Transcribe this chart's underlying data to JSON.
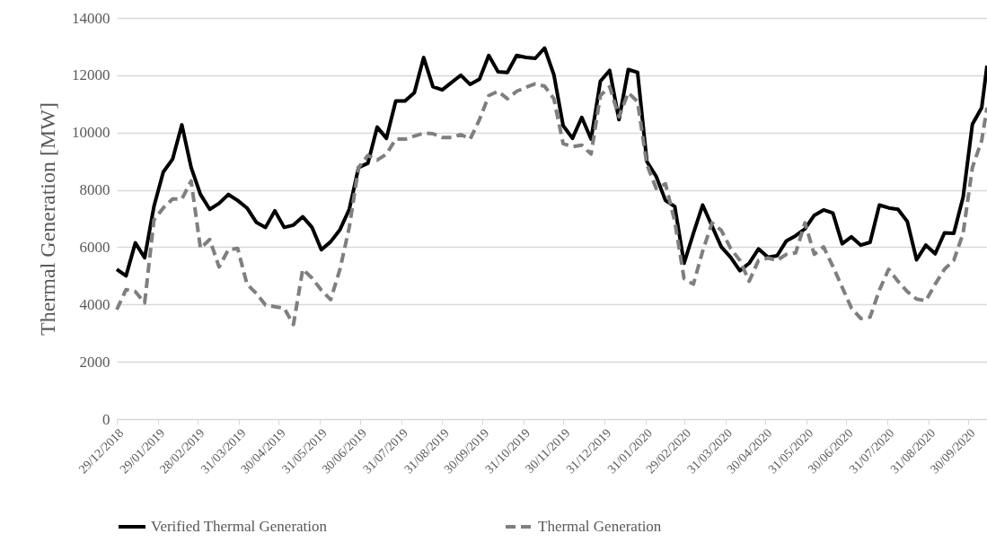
{
  "chart_data": {
    "type": "line",
    "ylabel": "Thermal Generation [MW]",
    "x": [
      "2018-12-29",
      "2019-01-05",
      "2019-01-12",
      "2019-01-19",
      "2019-01-26",
      "2019-02-02",
      "2019-02-09",
      "2019-02-16",
      "2019-02-23",
      "2019-03-02",
      "2019-03-09",
      "2019-03-16",
      "2019-03-23",
      "2019-03-30",
      "2019-04-06",
      "2019-04-13",
      "2019-04-20",
      "2019-04-27",
      "2019-05-04",
      "2019-05-11",
      "2019-05-18",
      "2019-05-25",
      "2019-06-01",
      "2019-06-08",
      "2019-06-15",
      "2019-06-22",
      "2019-06-29",
      "2019-07-06",
      "2019-07-13",
      "2019-07-20",
      "2019-07-27",
      "2019-08-03",
      "2019-08-10",
      "2019-08-17",
      "2019-08-24",
      "2019-08-31",
      "2019-09-07",
      "2019-09-14",
      "2019-09-21",
      "2019-09-28",
      "2019-10-05",
      "2019-10-12",
      "2019-10-19",
      "2019-10-26",
      "2019-11-02",
      "2019-11-09",
      "2019-11-16",
      "2019-11-23",
      "2019-11-30",
      "2019-12-07",
      "2019-12-14",
      "2019-12-21",
      "2019-12-28",
      "2020-01-04",
      "2020-01-11",
      "2020-01-18",
      "2020-01-25",
      "2020-02-01",
      "2020-02-08",
      "2020-02-15",
      "2020-02-22",
      "2020-02-29",
      "2020-03-07",
      "2020-03-14",
      "2020-03-21",
      "2020-03-28",
      "2020-04-04",
      "2020-04-11",
      "2020-04-18",
      "2020-04-25",
      "2020-05-02",
      "2020-05-09",
      "2020-05-16",
      "2020-05-23",
      "2020-05-30",
      "2020-06-06",
      "2020-06-13",
      "2020-06-20",
      "2020-06-27",
      "2020-07-04",
      "2020-07-11",
      "2020-07-18",
      "2020-07-25",
      "2020-08-01",
      "2020-08-08",
      "2020-08-15",
      "2020-08-22",
      "2020-08-29",
      "2020-09-05",
      "2020-09-12",
      "2020-09-19",
      "2020-09-26",
      "2020-10-03",
      "2020-10-10",
      "2020-10-14"
    ],
    "series": [
      {
        "name": "Verified Thermal Generation",
        "color": "#000000",
        "line_style": "solid",
        "values": [
          5230,
          5000,
          6150,
          5630,
          7420,
          8620,
          9070,
          10270,
          8780,
          7840,
          7320,
          7530,
          7840,
          7630,
          7370,
          6870,
          6690,
          7270,
          6690,
          6770,
          7060,
          6690,
          5910,
          6190,
          6610,
          7320,
          8780,
          8930,
          10190,
          9800,
          11100,
          11100,
          11390,
          12620,
          11600,
          11490,
          11750,
          12000,
          11680,
          11860,
          12690,
          12120,
          12100,
          12690,
          12620,
          12590,
          12950,
          12020,
          10240,
          9800,
          10530,
          9770,
          11790,
          12170,
          10450,
          12200,
          12100,
          8990,
          8470,
          7630,
          7420,
          5440,
          6480,
          7470,
          6740,
          6010,
          5650,
          5180,
          5440,
          5940,
          5650,
          5700,
          6220,
          6400,
          6640,
          7110,
          7300,
          7190,
          6120,
          6360,
          6070,
          6170,
          7470,
          7370,
          7320,
          6900,
          5560,
          6070,
          5770,
          6500,
          6480,
          7740,
          10290,
          10870,
          12330
        ]
      },
      {
        "name": "Thermal Generation",
        "color": "#7f7f7f",
        "line_style": "dashed",
        "values": [
          3820,
          4520,
          4450,
          4060,
          6950,
          7370,
          7680,
          7680,
          8310,
          5960,
          6270,
          5310,
          5910,
          5960,
          4710,
          4390,
          3980,
          3920,
          3870,
          3300,
          5230,
          4920,
          4500,
          4170,
          5230,
          6690,
          8780,
          9200,
          9040,
          9250,
          9770,
          9770,
          9880,
          9980,
          9960,
          9830,
          9830,
          9930,
          9770,
          10450,
          11290,
          11440,
          11180,
          11440,
          11580,
          11700,
          11620,
          11180,
          9610,
          9510,
          9560,
          9250,
          11290,
          11600,
          10550,
          11390,
          11080,
          8880,
          8050,
          8210,
          6900,
          4900,
          4710,
          5860,
          6850,
          6590,
          5960,
          5540,
          4810,
          5540,
          5620,
          5540,
          5750,
          5800,
          6850,
          5750,
          6010,
          5330,
          4600,
          3870,
          3510,
          3560,
          4500,
          5230,
          4810,
          4450,
          4190,
          4130,
          4710,
          5230,
          5540,
          6480,
          8780,
          9720,
          10870
        ]
      }
    ],
    "xlim": [
      "2018-12-29",
      "2020-10-14"
    ],
    "xticks": [
      {
        "value": "2018-12-29",
        "label": "29/12/2018"
      },
      {
        "value": "2019-01-29",
        "label": "29/01/2019"
      },
      {
        "value": "2019-02-28",
        "label": "28/02/2019"
      },
      {
        "value": "2019-03-31",
        "label": "31/03/2019"
      },
      {
        "value": "2019-04-30",
        "label": "30/04/2019"
      },
      {
        "value": "2019-05-31",
        "label": "31/05/2019"
      },
      {
        "value": "2019-06-30",
        "label": "30/06/2019"
      },
      {
        "value": "2019-07-31",
        "label": "31/07/2019"
      },
      {
        "value": "2019-08-31",
        "label": "31/08/2019"
      },
      {
        "value": "2019-09-30",
        "label": "30/09/2019"
      },
      {
        "value": "2019-10-31",
        "label": "31/10/2019"
      },
      {
        "value": "2019-11-30",
        "label": "30/11/2019"
      },
      {
        "value": "2019-12-31",
        "label": "31/12/2019"
      },
      {
        "value": "2020-01-31",
        "label": "31/01/2020"
      },
      {
        "value": "2020-02-29",
        "label": "29/02/2020"
      },
      {
        "value": "2020-03-31",
        "label": "31/03/2020"
      },
      {
        "value": "2020-04-30",
        "label": "30/04/2020"
      },
      {
        "value": "2020-05-31",
        "label": "31/05/2020"
      },
      {
        "value": "2020-06-30",
        "label": "30/06/2020"
      },
      {
        "value": "2020-07-31",
        "label": "31/07/2020"
      },
      {
        "value": "2020-08-31",
        "label": "31/08/2020"
      },
      {
        "value": "2020-09-30",
        "label": "30/09/2020"
      }
    ],
    "ylim": [
      0,
      14000
    ],
    "yticks": [
      0,
      2000,
      4000,
      6000,
      8000,
      10000,
      12000,
      14000
    ],
    "grid": "y",
    "legend": "bottom"
  }
}
